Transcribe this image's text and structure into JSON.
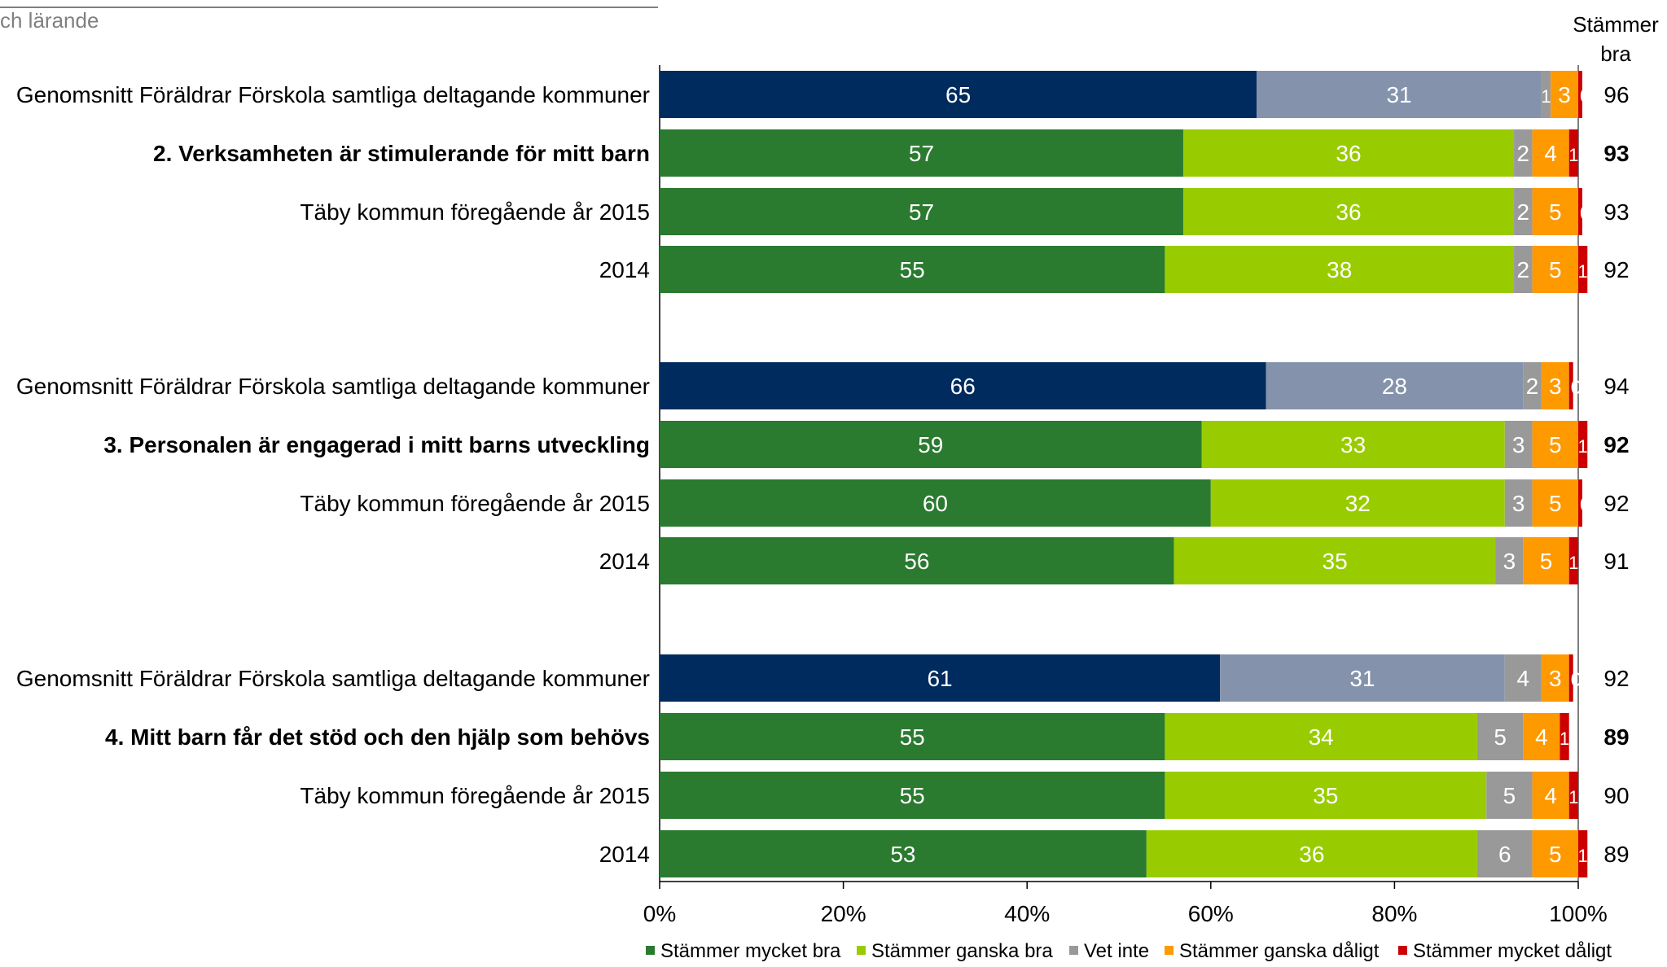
{
  "section_title": "ch lärande",
  "right_column_header": [
    "Stämmer",
    "bra"
  ],
  "colors": {
    "Stämmer mycket bra": "#2a7a2f",
    "Stämmer ganska bra": "#99cc00",
    "Vet inte": "#999999",
    "Stämmer ganska dåligt": "#ff9900",
    "Stämmer mycket dåligt": "#cc0000",
    "avg_mycket_bra": "#002b5e",
    "avg_ganska_bra": "#8592ac"
  },
  "chart_data": {
    "type": "bar",
    "orientation": "horizontal",
    "stacked": true,
    "xlim": [
      0,
      100
    ],
    "xticks": [
      "0%",
      "20%",
      "40%",
      "60%",
      "80%",
      "100%"
    ],
    "legend": {
      "position": "bottom",
      "entries": [
        "Stämmer mycket bra",
        "Stämmer ganska bra",
        "Vet inte",
        "Stämmer ganska dåligt",
        "Stämmer mycket dåligt"
      ]
    },
    "categories": [
      "Genomsnitt Föräldrar Förskola samtliga deltagande kommuner",
      "2. Verksamheten är stimulerande för mitt barn",
      "Täby kommun föregående år 2015",
      "2014",
      "Genomsnitt Föräldrar Förskola samtliga deltagande kommuner",
      "3. Personalen är engagerad i mitt barns utveckling",
      "Täby kommun föregående år 2015",
      "2014",
      "Genomsnitt Föräldrar Förskola samtliga deltagande kommuner",
      "4. Mitt barn får det stöd och den hjälp som behövs",
      "Täby kommun föregående år 2015",
      "2014"
    ],
    "bold": [
      false,
      true,
      false,
      false,
      false,
      true,
      false,
      false,
      false,
      true,
      false,
      false
    ],
    "average_rows": [
      true,
      false,
      false,
      false,
      true,
      false,
      false,
      false,
      true,
      false,
      false,
      false
    ],
    "series": [
      {
        "name": "Stämmer mycket bra",
        "values": [
          65,
          57,
          57,
          55,
          66,
          59,
          60,
          56,
          61,
          55,
          55,
          53
        ]
      },
      {
        "name": "Stämmer ganska bra",
        "values": [
          31,
          36,
          36,
          38,
          28,
          33,
          32,
          35,
          31,
          34,
          35,
          36
        ]
      },
      {
        "name": "Vet inte",
        "values": [
          1,
          2,
          2,
          2,
          2,
          3,
          3,
          3,
          4,
          5,
          5,
          6
        ]
      },
      {
        "name": "Stämmer ganska dåligt",
        "values": [
          3,
          4,
          5,
          5,
          3,
          5,
          5,
          5,
          3,
          4,
          4,
          5
        ]
      },
      {
        "name": "Stämmer mycket dåligt",
        "values": [
          0,
          1,
          0,
          1,
          0,
          1,
          0,
          1,
          0,
          1,
          1,
          1
        ]
      }
    ],
    "row_totals": [
      96,
      93,
      93,
      92,
      94,
      92,
      92,
      91,
      92,
      89,
      90,
      89
    ]
  }
}
